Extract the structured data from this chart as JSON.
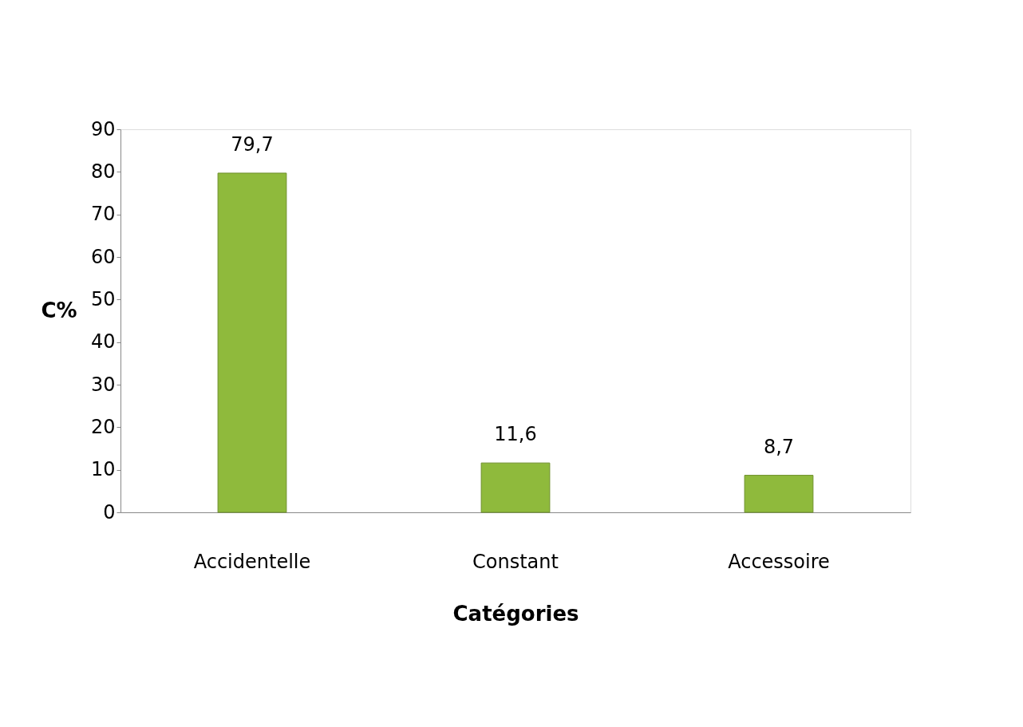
{
  "chart_data": {
    "type": "bar",
    "xlabel": "Catégories",
    "ylabel": "C%",
    "categories": [
      "Accidentelle",
      "Constant",
      "Accessoire"
    ],
    "values": [
      79.7,
      11.6,
      8.7
    ],
    "value_labels": [
      "79,7",
      "11,6",
      "8,7"
    ],
    "color": "#8fba3c",
    "ylim": [
      0,
      90
    ],
    "yticks": [
      0,
      10,
      20,
      30,
      40,
      50,
      60,
      70,
      80,
      90
    ],
    "grid": false
  }
}
